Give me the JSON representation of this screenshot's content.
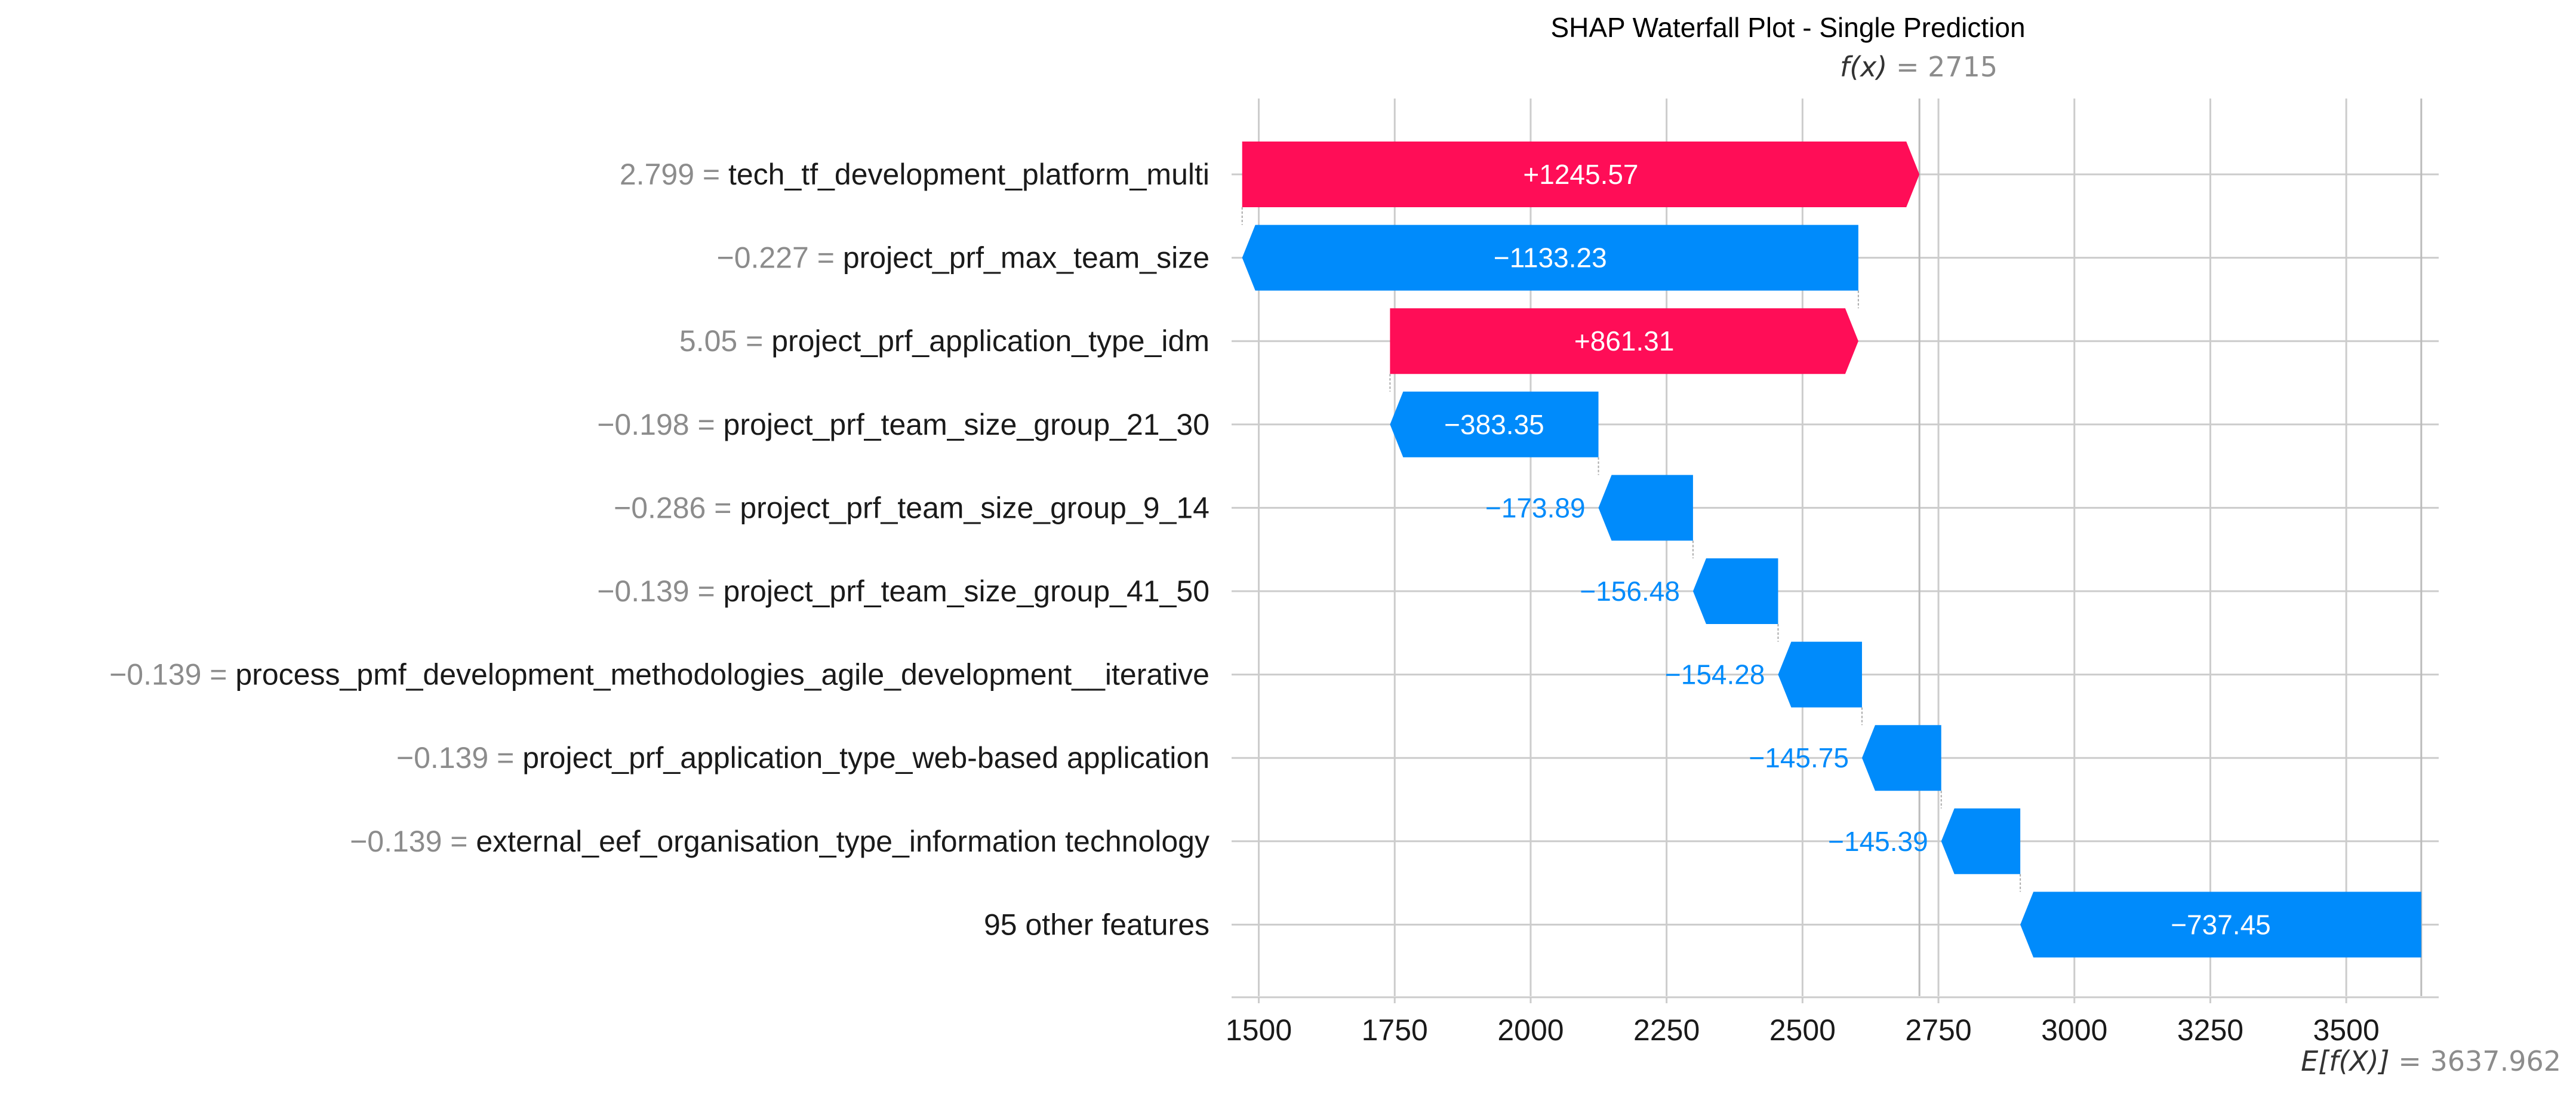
{
  "chart_data": {
    "type": "bar",
    "subtype": "shap-waterfall",
    "title": "SHAP Waterfall Plot - Single Prediction",
    "fx_label": "f(x)",
    "fx_value": "2715",
    "fx": 2715,
    "ex_label": "E[f(X)]",
    "ex_value": "3637.962",
    "ex": 3637.962,
    "xlim": [
      1450,
      3670
    ],
    "xticks": [
      1500,
      1750,
      2000,
      2250,
      2500,
      2750,
      3000,
      3250,
      3500
    ],
    "grid": true,
    "colors": {
      "positive": "#ff0d57",
      "negative": "#008bfb",
      "grid": "#cccccc"
    },
    "features": [
      {
        "value_text": "2.799",
        "name": "tech_tf_development_platform_multi",
        "shap": 1245.57,
        "label": "+1245.57"
      },
      {
        "value_text": "−0.227",
        "name": "project_prf_max_team_size",
        "shap": -1133.23,
        "label": "−1133.23"
      },
      {
        "value_text": "5.05",
        "name": "project_prf_application_type_idm",
        "shap": 861.31,
        "label": "+861.31"
      },
      {
        "value_text": "−0.198",
        "name": "project_prf_team_size_group_21_30",
        "shap": -383.35,
        "label": "−383.35"
      },
      {
        "value_text": "−0.286",
        "name": "project_prf_team_size_group_9_14",
        "shap": -173.89,
        "label": "−173.89"
      },
      {
        "value_text": "−0.139",
        "name": "project_prf_team_size_group_41_50",
        "shap": -156.48,
        "label": "−156.48"
      },
      {
        "value_text": "−0.139",
        "name": "process_pmf_development_methodologies_agile_development__iterative",
        "shap": -154.28,
        "label": "−154.28"
      },
      {
        "value_text": "−0.139",
        "name": "project_prf_application_type_web-based application",
        "shap": -145.75,
        "label": "−145.75"
      },
      {
        "value_text": "−0.139",
        "name": "external_eef_organisation_type_information technology",
        "shap": -145.39,
        "label": "−145.39"
      },
      {
        "value_text": "",
        "name": "95 other features",
        "shap": -737.45,
        "label": "−737.45"
      }
    ]
  }
}
